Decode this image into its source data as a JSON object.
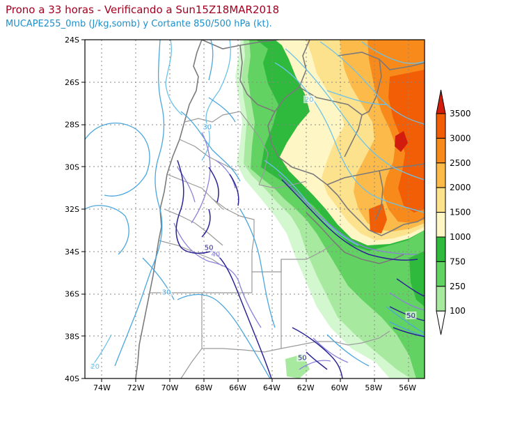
{
  "header": {
    "title": "Prono a 33 horas - Verificando a Sun15Z18MAR2018",
    "subtitle": "MUCAPE255_0mb (J/kg,somb) y Cortante 850/500 hPa (kt)."
  },
  "map": {
    "lat_labels": [
      "24S",
      "26S",
      "28S",
      "30S",
      "32S",
      "34S",
      "36S",
      "38S",
      "40S"
    ],
    "lon_labels": [
      "74W",
      "72W",
      "70W",
      "68W",
      "66W",
      "64W",
      "62W",
      "60W",
      "58W",
      "56W"
    ],
    "lat_range": [
      -40,
      -24
    ],
    "lon_range": [
      -75,
      -55
    ],
    "grid": true,
    "contour_labels": [
      {
        "text": "20",
        "lon": -61.8,
        "lat": -26.9,
        "color": "#6cc1e8"
      },
      {
        "text": "30",
        "lon": -67.8,
        "lat": -28.2,
        "color": "#4aa6dd"
      },
      {
        "text": "50",
        "lon": -67.7,
        "lat": -33.9,
        "color": "#2b2494"
      },
      {
        "text": "40",
        "lon": -67.3,
        "lat": -34.2,
        "color": "#8a80da"
      },
      {
        "text": "30",
        "lon": -70.2,
        "lat": -36.0,
        "color": "#4aa6dd"
      },
      {
        "text": "50",
        "lon": -55.8,
        "lat": -37.1,
        "color": "#2b2494"
      },
      {
        "text": "50",
        "lon": -62.2,
        "lat": -39.1,
        "color": "#2b2494"
      },
      {
        "text": "20",
        "lon": -74.4,
        "lat": -39.5,
        "color": "#6cc1e8"
      }
    ]
  },
  "legend": {
    "labels": [
      "3500",
      "3000",
      "2500",
      "2000",
      "1500",
      "1000",
      "750",
      "250",
      "100"
    ],
    "colors": [
      "#d21c0d",
      "#f25e06",
      "#f88a1b",
      "#fbba4a",
      "#fde28e",
      "#fef6c4",
      "#2fba3d",
      "#62d262",
      "#a7ea9f",
      "#d3f7ce"
    ]
  }
}
